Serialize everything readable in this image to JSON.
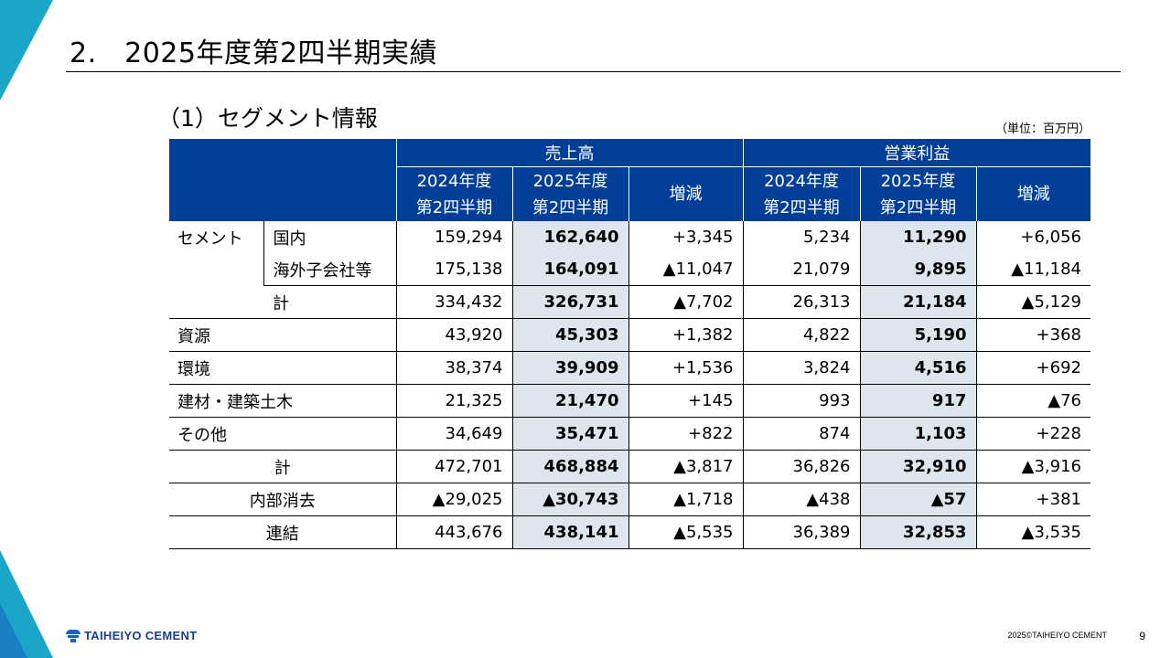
{
  "page": {
    "title": "2.　2025年度第2四半期実績",
    "subtitle": "（1）セグメント情報",
    "unit_note": "（単位：百万円）",
    "logo_text": "TAIHEIYO CEMENT",
    "copyright": "2025©TAIHEIYO CEMENT",
    "page_number": "9",
    "accent_colors": {
      "header_blue": "#003e97",
      "highlight": "#dde5ef",
      "deco_cyan": "#19a6c9"
    }
  },
  "table": {
    "groups": {
      "sales": "売上高",
      "op_profit": "営業利益"
    },
    "periods": {
      "prev": "2024年度\n第2四半期",
      "curr": "2025年度\n第2四半期",
      "change": "増減"
    },
    "labels": {
      "cement": "セメント",
      "domestic": "国内",
      "overseas": "海外子会社等",
      "cement_total": "計",
      "resources": "資源",
      "environment": "環境",
      "construction": "建材・建築土木",
      "other": "その他",
      "total": "計",
      "elimination": "内部消去",
      "consolidated": "連結"
    },
    "rows": {
      "domestic": [
        "159,294",
        "162,640",
        "+3,345",
        "5,234",
        "11,290",
        "+6,056"
      ],
      "overseas": [
        "175,138",
        "164,091",
        "▲11,047",
        "21,079",
        "9,895",
        "▲11,184"
      ],
      "cement_total": [
        "334,432",
        "326,731",
        "▲7,702",
        "26,313",
        "21,184",
        "▲5,129"
      ],
      "resources": [
        "43,920",
        "45,303",
        "+1,382",
        "4,822",
        "5,190",
        "+368"
      ],
      "environment": [
        "38,374",
        "39,909",
        "+1,536",
        "3,824",
        "4,516",
        "+692"
      ],
      "construction": [
        "21,325",
        "21,470",
        "+145",
        "993",
        "917",
        "▲76"
      ],
      "other": [
        "34,649",
        "35,471",
        "+822",
        "874",
        "1,103",
        "+228"
      ],
      "total": [
        "472,701",
        "468,884",
        "▲3,817",
        "36,826",
        "32,910",
        "▲3,916"
      ],
      "elimination": [
        "▲29,025",
        "▲30,743",
        "▲1,718",
        "▲438",
        "▲57",
        "+381"
      ],
      "consolidated": [
        "443,676",
        "438,141",
        "▲5,535",
        "36,389",
        "32,853",
        "▲3,535"
      ]
    }
  }
}
